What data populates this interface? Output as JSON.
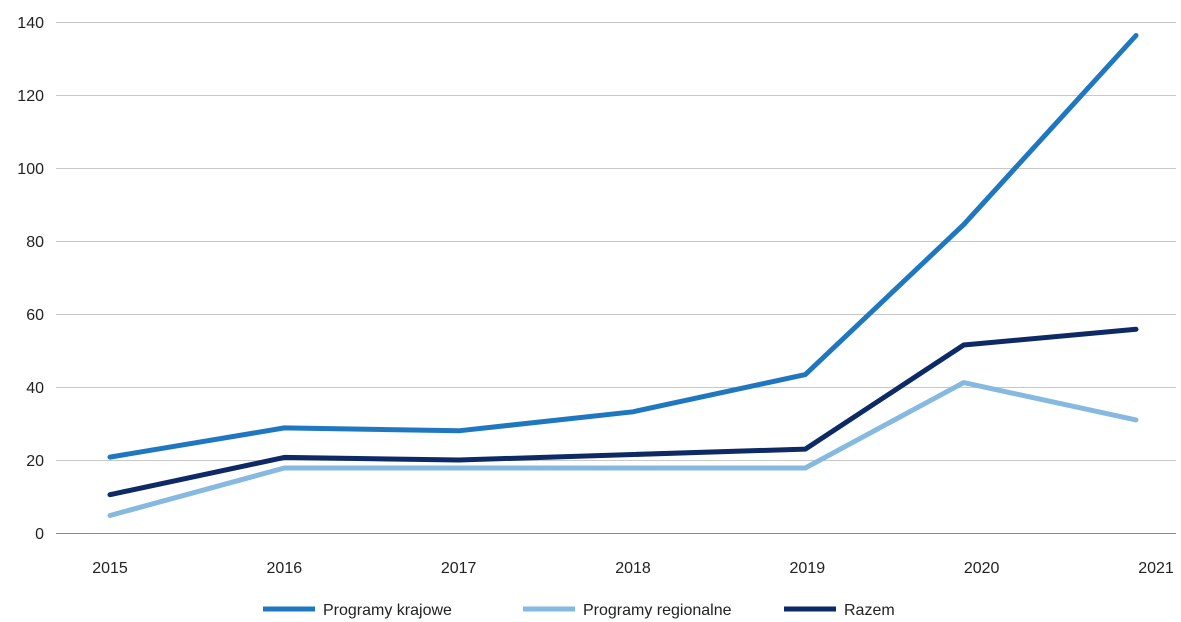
{
  "chart_data": {
    "type": "line",
    "x": [
      "2015",
      "2016",
      "2017",
      "2018",
      "2019",
      "2020",
      "2021"
    ],
    "ylim": [
      0,
      140
    ],
    "yticks": [
      0,
      20,
      40,
      60,
      80,
      100,
      120,
      140
    ],
    "grid": "horizontal",
    "legend": "bottom",
    "series": [
      {
        "name": "Programy krajowe",
        "color": "#1f78bf",
        "values": [
          20.8,
          28.8,
          28.0,
          33.2,
          43.4,
          84.5,
          136.3
        ]
      },
      {
        "name": "Programy regionalne",
        "color": "#86b9e0",
        "values": [
          4.8,
          17.8,
          17.8,
          17.8,
          17.8,
          41.2,
          31.0
        ]
      },
      {
        "name": "Razem",
        "color": "#0d2a66",
        "values": [
          10.5,
          20.7,
          20.0,
          21.5,
          23.0,
          51.5,
          55.8
        ]
      }
    ]
  }
}
